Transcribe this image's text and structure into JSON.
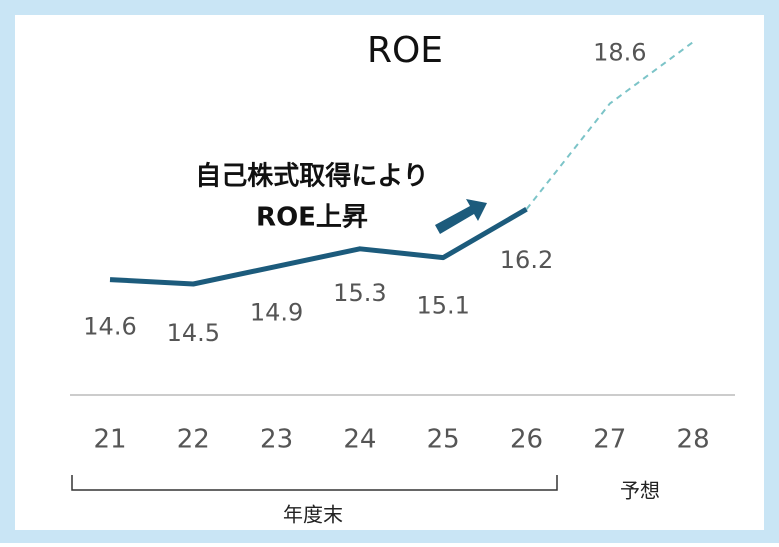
{
  "chart_data": {
    "type": "line",
    "title": "ROE",
    "categories": [
      "21",
      "22",
      "23",
      "24",
      "25",
      "26",
      "27",
      "28"
    ],
    "values": [
      14.6,
      14.5,
      14.9,
      15.3,
      15.1,
      16.2,
      18.6,
      20
    ],
    "color": "#1c5b7c",
    "forecast_color": "#7cc4c8",
    "forecast_from": "26",
    "ylim": [
      13,
      20.5
    ],
    "annotation": [
      "自己株式取得により",
      "ROE上昇"
    ],
    "group_labels": [
      "年度末",
      "予想"
    ]
  }
}
